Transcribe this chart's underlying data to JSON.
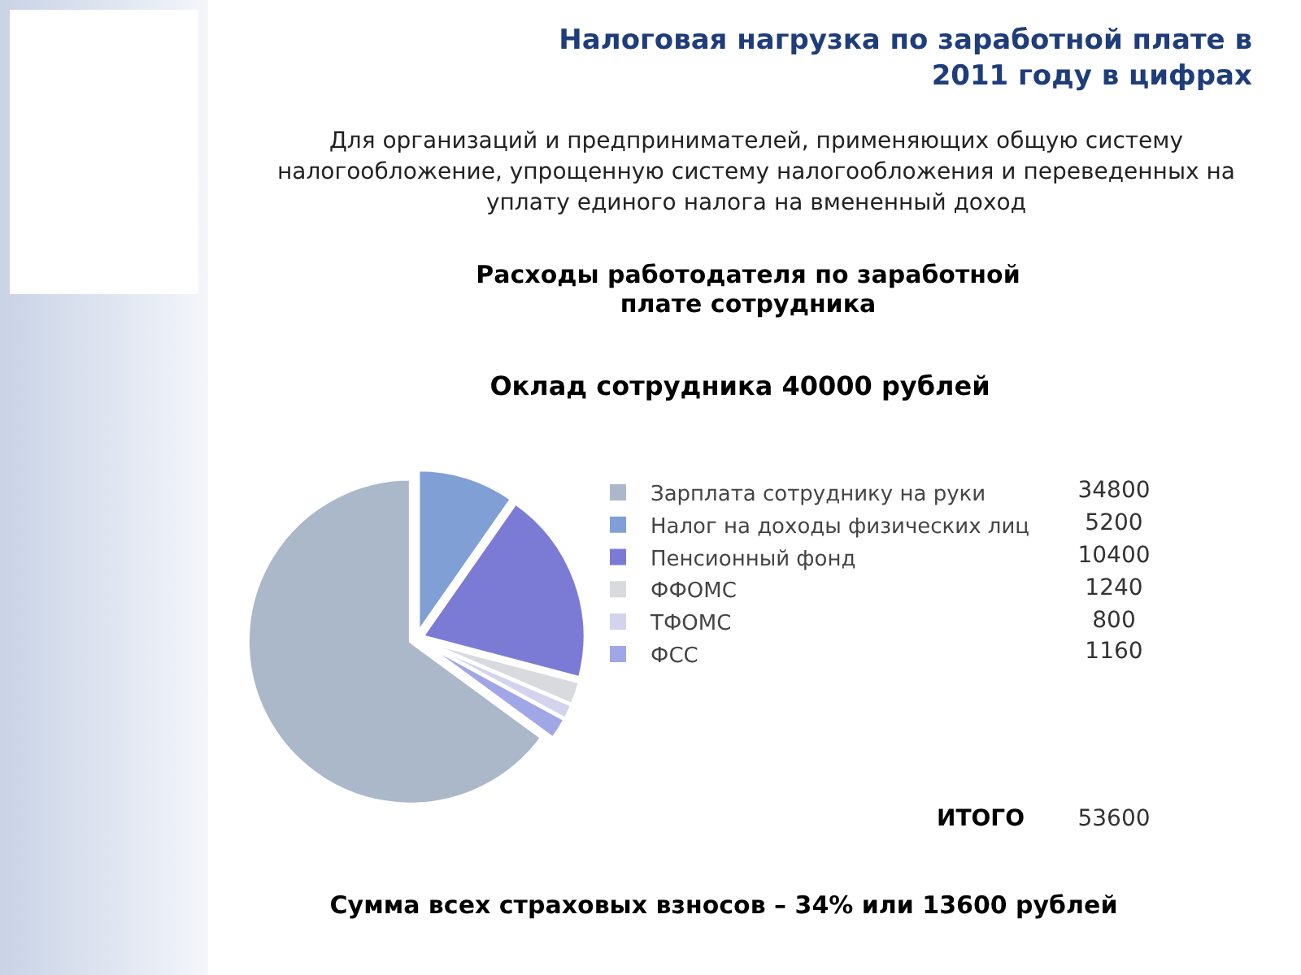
{
  "chart_data": {
    "type": "pie",
    "title": "Налоговая нагрузка по заработной плате в 2011 году в цифрах",
    "subtitle": "Для организаций и предпринимателей, применяющих общую систему налогообложение, упрощенную систему налогообложения и переведенных на уплату единого налога на вмененный доход",
    "categories": [
      "Зарплата сотруднику на руки",
      "Налог на доходы физических лиц",
      "Пенсионный фонд",
      "ФФОМС",
      "ТФОМС",
      "ФСС"
    ],
    "values": [
      34800,
      5200,
      10400,
      1240,
      800,
      1160
    ],
    "colors": [
      "#aab8c9",
      "#7f9fd5",
      "#7b7bd5",
      "#d9dadf",
      "#d3d3ee",
      "#a0a6e6"
    ],
    "data_labels": true,
    "legend": "right",
    "annotations": [
      "Расходы работодателя по заработной плате сотрудника",
      "Оклад сотрудника 40000 рублей",
      "ИТОГО",
      "53600",
      "Сумма всех страховых взносов – 34% или 13600 рублей"
    ]
  }
}
